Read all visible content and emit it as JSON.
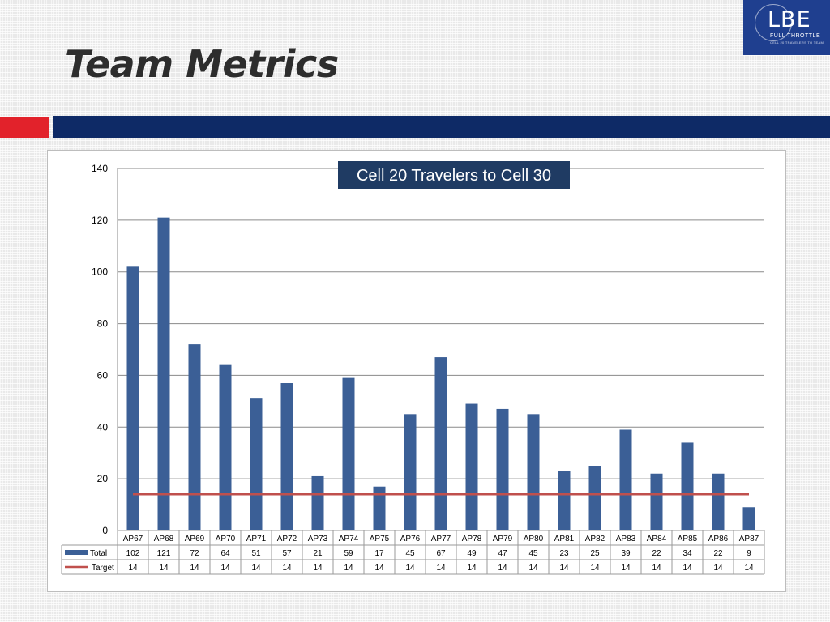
{
  "slide": {
    "title": "Team Metrics"
  },
  "logo": {
    "mark": "LBE",
    "tagline": "FULL THROTTLE",
    "subtagline": "CELL 20 TRAVELERS TO TEAM"
  },
  "colors": {
    "bar": "#3b5f96",
    "target": "#c0504d",
    "red_accent": "#e2222b",
    "navy_band": "#0e2a66",
    "title_box": "#1f3b63"
  },
  "chart_data": {
    "type": "bar",
    "title": "Cell 20 Travelers to Cell 30",
    "categories": [
      "AP67",
      "AP68",
      "AP69",
      "AP70",
      "AP71",
      "AP72",
      "AP73",
      "AP74",
      "AP75",
      "AP76",
      "AP77",
      "AP78",
      "AP79",
      "AP80",
      "AP81",
      "AP82",
      "AP83",
      "AP84",
      "AP85",
      "AP86",
      "AP87"
    ],
    "series": [
      {
        "name": "Total",
        "type": "bar",
        "values": [
          102,
          121,
          72,
          64,
          51,
          57,
          21,
          59,
          17,
          45,
          67,
          49,
          47,
          45,
          23,
          25,
          39,
          22,
          34,
          22,
          9
        ]
      },
      {
        "name": "Target",
        "type": "line",
        "values": [
          14,
          14,
          14,
          14,
          14,
          14,
          14,
          14,
          14,
          14,
          14,
          14,
          14,
          14,
          14,
          14,
          14,
          14,
          14,
          14,
          14
        ]
      }
    ],
    "ylim": [
      0,
      140
    ],
    "yticks": [
      0,
      20,
      40,
      60,
      80,
      100,
      120,
      140
    ],
    "grid": true,
    "legend": "data-table"
  }
}
